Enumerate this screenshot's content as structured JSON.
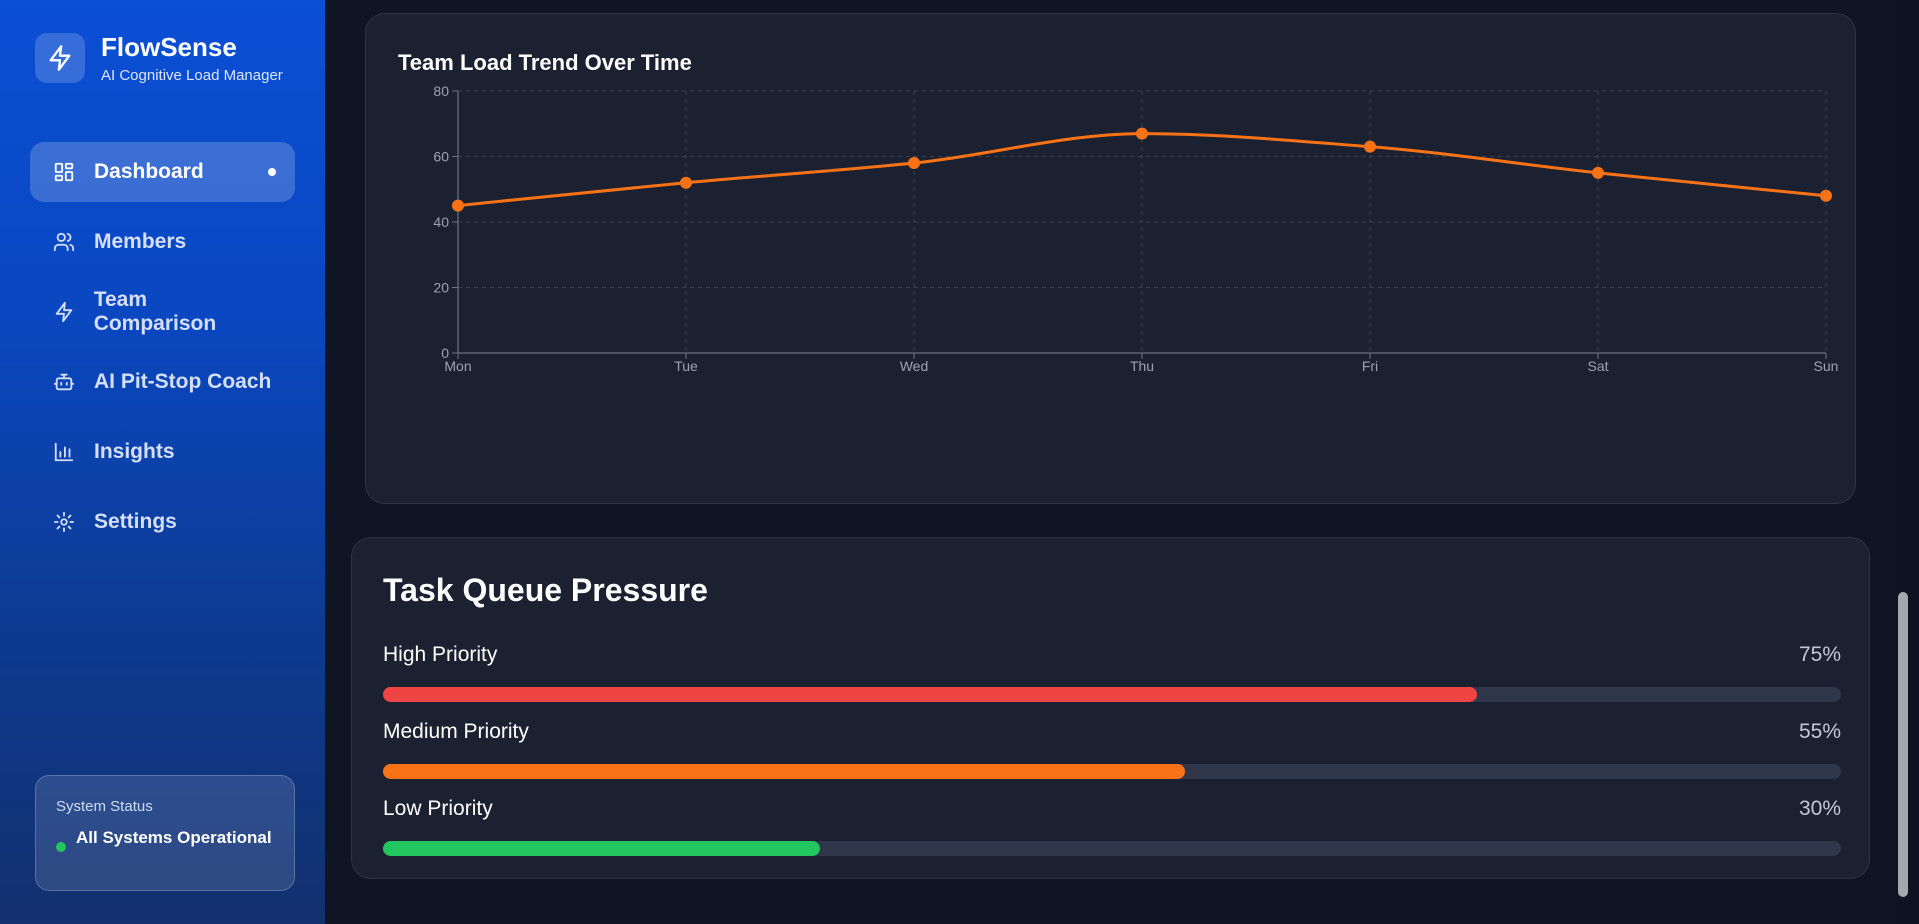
{
  "brand": {
    "title": "FlowSense",
    "subtitle": "AI Cognitive Load Manager",
    "icon": "bolt-icon"
  },
  "sidebar": {
    "items": [
      {
        "label": "Dashboard",
        "icon": "grid-icon",
        "active": true
      },
      {
        "label": "Members",
        "icon": "users-icon"
      },
      {
        "label": "Team Comparison",
        "icon": "bolt-icon"
      },
      {
        "label": "AI Pit-Stop Coach",
        "icon": "robot-icon"
      },
      {
        "label": "Insights",
        "icon": "bar-chart-icon"
      },
      {
        "label": "Settings",
        "icon": "gear-icon"
      }
    ],
    "status": {
      "label": "System Status",
      "text": "All Systems Operational",
      "color": "#22c55e"
    }
  },
  "chart_data": {
    "type": "line",
    "title": "Team Load Trend Over Time",
    "categories": [
      "Mon",
      "Tue",
      "Wed",
      "Thu",
      "Fri",
      "Sat",
      "Sun"
    ],
    "series": [
      {
        "values": [
          45,
          52,
          58,
          67,
          63,
          55,
          48
        ],
        "color": "#f97316"
      }
    ],
    "ylim": [
      0,
      80
    ],
    "yticks": [
      0,
      20,
      40,
      60,
      80
    ],
    "grid": true,
    "smooth": true
  },
  "queue": {
    "title": "Task Queue Pressure",
    "items": [
      {
        "label": "High Priority",
        "value_text": "75%",
        "value": 75,
        "color": "#ef4444"
      },
      {
        "label": "Medium Priority",
        "value_text": "55%",
        "value": 55,
        "color": "#f97316"
      },
      {
        "label": "Low Priority",
        "value_text": "30%",
        "value": 30,
        "color": "#22c55e"
      }
    ]
  }
}
